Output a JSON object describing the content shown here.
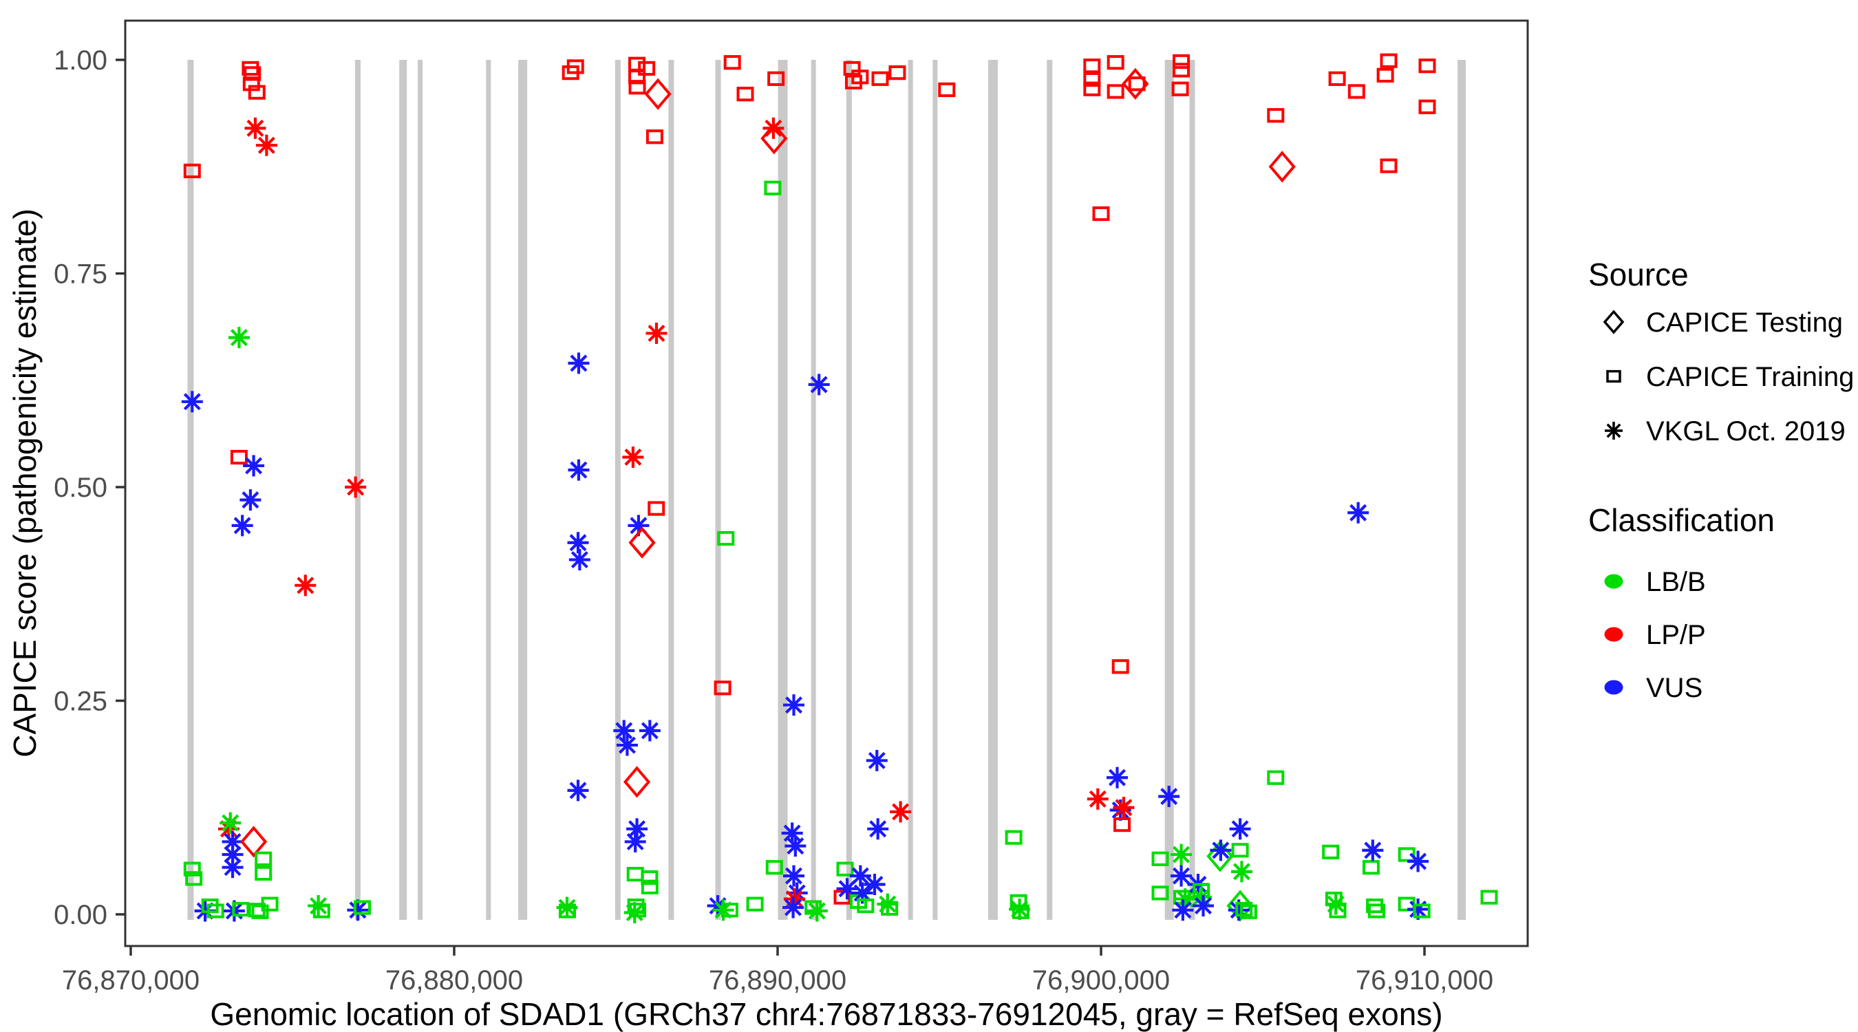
{
  "chart_data": {
    "type": "scatter",
    "title": "",
    "xlabel": "Genomic location of SDAD1 (GRCh37 chr4:76871833-76912045, gray = RefSeq exons)",
    "ylabel": "CAPICE score (pathogenicity estimate)",
    "grid": "off",
    "legend_position": "right",
    "background": "#ffffff",
    "panel_border_color": "#333333",
    "exon_color": "#C9C9C9",
    "class_colors": {
      "B": "#00DC00",
      "P": "#FF0000",
      "U": "#1A1AFF"
    },
    "source_shapes": {
      "T": "diamond",
      "R": "square",
      "V": "asterisk"
    },
    "point_codes": {
      "source": {
        "T": "CAPICE Testing",
        "R": "CAPICE Training",
        "V": "VKGL Oct. 2019"
      },
      "classification": {
        "B": "LB/B",
        "P": "LP/P",
        "U": "VUS"
      }
    },
    "xlim_bp": [
      76869830,
      76913190
    ],
    "ylim": [
      -0.047,
      1.047
    ],
    "x_ticks": [
      {
        "bp": 76870000,
        "label": "76,870,000"
      },
      {
        "bp": 76880000,
        "label": "76,880,000"
      },
      {
        "bp": 76890000,
        "label": "76,890,000"
      },
      {
        "bp": 76900000,
        "label": "76,900,000"
      },
      {
        "bp": 76910000,
        "label": "76,910,000"
      }
    ],
    "y_ticks": [
      {
        "v": 0.0,
        "label": "0.00"
      },
      {
        "v": 0.25,
        "label": "0.25"
      },
      {
        "v": 0.5,
        "label": "0.50"
      },
      {
        "v": 0.75,
        "label": "0.75"
      },
      {
        "v": 1.0,
        "label": "1.00"
      }
    ],
    "exons_bp": [
      [
        76871850,
        9
      ],
      [
        76877020,
        8
      ],
      [
        76878420,
        11
      ],
      [
        76878950,
        7
      ],
      [
        76881060,
        7
      ],
      [
        76882120,
        13
      ],
      [
        76885060,
        8
      ],
      [
        76886710,
        8
      ],
      [
        76888160,
        8
      ],
      [
        76890160,
        14
      ],
      [
        76891110,
        7
      ],
      [
        76892210,
        8
      ],
      [
        76894110,
        7
      ],
      [
        76894870,
        7
      ],
      [
        76896660,
        14
      ],
      [
        76898410,
        8
      ],
      [
        76902110,
        13
      ],
      [
        76902820,
        8
      ],
      [
        76911150,
        12
      ]
    ],
    "points": [
      [
        76871900,
        0.87,
        "R",
        "P"
      ],
      [
        76871900,
        0.6,
        "V",
        "U"
      ],
      [
        76871900,
        0.053,
        "R",
        "B"
      ],
      [
        76871950,
        0.042,
        "R",
        "B"
      ],
      [
        76872300,
        0.004,
        "V",
        "U"
      ],
      [
        76872450,
        0.01,
        "R",
        "B"
      ],
      [
        76872620,
        0.004,
        "R",
        "B"
      ],
      [
        76873030,
        0.1,
        "V",
        "P"
      ],
      [
        76873080,
        0.107,
        "V",
        "B"
      ],
      [
        76873150,
        0.085,
        "V",
        "U"
      ],
      [
        76873150,
        0.07,
        "V",
        "U"
      ],
      [
        76873150,
        0.055,
        "V",
        "U"
      ],
      [
        76873200,
        0.004,
        "V",
        "U"
      ],
      [
        76873350,
        0.675,
        "V",
        "B"
      ],
      [
        76873350,
        0.535,
        "R",
        "P"
      ],
      [
        76873400,
        0.006,
        "R",
        "B"
      ],
      [
        76873450,
        0.455,
        "V",
        "U"
      ],
      [
        76873700,
        0.485,
        "V",
        "U"
      ],
      [
        76873700,
        0.99,
        "R",
        "P"
      ],
      [
        76873760,
        0.984,
        "R",
        "P"
      ],
      [
        76873730,
        0.972,
        "R",
        "P"
      ],
      [
        76873900,
        0.962,
        "R",
        "P"
      ],
      [
        76873850,
        0.92,
        "V",
        "P"
      ],
      [
        76873800,
        0.525,
        "V",
        "U"
      ],
      [
        76873800,
        0.085,
        "T",
        "P"
      ],
      [
        76873900,
        0.005,
        "R",
        "B"
      ],
      [
        76874000,
        0.003,
        "R",
        "B"
      ],
      [
        76874100,
        0.065,
        "R",
        "B"
      ],
      [
        76874100,
        0.048,
        "R",
        "B"
      ],
      [
        76874300,
        0.012,
        "R",
        "B"
      ],
      [
        76874200,
        0.9,
        "V",
        "P"
      ],
      [
        76875400,
        0.385,
        "V",
        "P"
      ],
      [
        76875800,
        0.01,
        "V",
        "B"
      ],
      [
        76875900,
        0.004,
        "R",
        "B"
      ],
      [
        76876950,
        0.5,
        "V",
        "P"
      ],
      [
        76877020,
        0.005,
        "V",
        "U"
      ],
      [
        76877160,
        0.008,
        "R",
        "B"
      ],
      [
        76883490,
        0.008,
        "V",
        "B"
      ],
      [
        76883500,
        0.004,
        "R",
        "B"
      ],
      [
        76883600,
        0.985,
        "R",
        "P"
      ],
      [
        76883750,
        0.992,
        "R",
        "P"
      ],
      [
        76883850,
        0.645,
        "V",
        "U"
      ],
      [
        76883850,
        0.52,
        "V",
        "U"
      ],
      [
        76883830,
        0.435,
        "V",
        "U"
      ],
      [
        76883880,
        0.415,
        "V",
        "U"
      ],
      [
        76883830,
        0.145,
        "V",
        "U"
      ],
      [
        76885250,
        0.215,
        "V",
        "U"
      ],
      [
        76885350,
        0.198,
        "V",
        "U"
      ],
      [
        76885530,
        0.535,
        "V",
        "P"
      ],
      [
        76885600,
        0.085,
        "V",
        "U"
      ],
      [
        76885600,
        0.047,
        "R",
        "B"
      ],
      [
        76885620,
        0.01,
        "R",
        "B"
      ],
      [
        76885650,
        0.995,
        "R",
        "P"
      ],
      [
        76885650,
        0.98,
        "R",
        "P"
      ],
      [
        76885660,
        0.968,
        "R",
        "P"
      ],
      [
        76885650,
        0.155,
        "T",
        "P"
      ],
      [
        76885650,
        0.1,
        "V",
        "U"
      ],
      [
        76885670,
        0.005,
        "R",
        "B"
      ],
      [
        76885580,
        0.002,
        "V",
        "B"
      ],
      [
        76885700,
        0.455,
        "V",
        "U"
      ],
      [
        76885810,
        0.435,
        "T",
        "P"
      ],
      [
        76885950,
        0.99,
        "R",
        "P"
      ],
      [
        76886040,
        0.043,
        "R",
        "B"
      ],
      [
        76886050,
        0.032,
        "R",
        "B"
      ],
      [
        76886050,
        0.215,
        "V",
        "U"
      ],
      [
        76886200,
        0.91,
        "R",
        "P"
      ],
      [
        76886250,
        0.475,
        "R",
        "P"
      ],
      [
        76886255,
        0.68,
        "V",
        "P"
      ],
      [
        76886300,
        0.96,
        "T",
        "P"
      ],
      [
        76888150,
        0.01,
        "V",
        "U"
      ],
      [
        76888300,
        0.265,
        "R",
        "P"
      ],
      [
        76888320,
        0.005,
        "V",
        "B"
      ],
      [
        76888400,
        0.44,
        "R",
        "B"
      ],
      [
        76888520,
        0.005,
        "R",
        "B"
      ],
      [
        76888600,
        0.997,
        "R",
        "P"
      ],
      [
        76889000,
        0.96,
        "R",
        "P"
      ],
      [
        76889300,
        0.012,
        "R",
        "B"
      ],
      [
        76889850,
        0.85,
        "R",
        "B"
      ],
      [
        76889870,
        0.92,
        "V",
        "P"
      ],
      [
        76889890,
        0.908,
        "T",
        "P"
      ],
      [
        76889900,
        0.055,
        "R",
        "B"
      ],
      [
        76889950,
        0.978,
        "R",
        "P"
      ],
      [
        76890450,
        0.095,
        "V",
        "U"
      ],
      [
        76890500,
        0.245,
        "V",
        "U"
      ],
      [
        76890550,
        0.08,
        "V",
        "U"
      ],
      [
        76890500,
        0.045,
        "V",
        "U"
      ],
      [
        76890600,
        0.025,
        "V",
        "U"
      ],
      [
        76890520,
        0.018,
        "V",
        "P"
      ],
      [
        76890480,
        0.008,
        "V",
        "U"
      ],
      [
        76891100,
        0.008,
        "R",
        "B"
      ],
      [
        76891220,
        0.004,
        "V",
        "B"
      ],
      [
        76891280,
        0.62,
        "V",
        "U"
      ],
      [
        76892000,
        0.02,
        "R",
        "P"
      ],
      [
        76892085,
        0.053,
        "R",
        "B"
      ],
      [
        76892150,
        0.03,
        "V",
        "U"
      ],
      [
        76892300,
        0.99,
        "R",
        "P"
      ],
      [
        76892350,
        0.974,
        "R",
        "P"
      ],
      [
        76892500,
        0.015,
        "R",
        "B"
      ],
      [
        76892550,
        0.98,
        "R",
        "P"
      ],
      [
        76892560,
        0.045,
        "V",
        "U"
      ],
      [
        76892620,
        0.025,
        "V",
        "U"
      ],
      [
        76892720,
        0.01,
        "R",
        "B"
      ],
      [
        76893000,
        0.035,
        "V",
        "U"
      ],
      [
        76893070,
        0.18,
        "V",
        "U"
      ],
      [
        76893100,
        0.1,
        "V",
        "U"
      ],
      [
        76893170,
        0.978,
        "R",
        "P"
      ],
      [
        76893400,
        0.012,
        "V",
        "B"
      ],
      [
        76893460,
        0.007,
        "R",
        "B"
      ],
      [
        76893700,
        0.985,
        "R",
        "P"
      ],
      [
        76893800,
        0.12,
        "V",
        "P"
      ],
      [
        76895230,
        0.965,
        "R",
        "P"
      ],
      [
        76897300,
        0.09,
        "R",
        "B"
      ],
      [
        76897450,
        0.015,
        "R",
        "B"
      ],
      [
        76897480,
        0.006,
        "V",
        "B"
      ],
      [
        76897520,
        0.003,
        "R",
        "B"
      ],
      [
        76899720,
        0.993,
        "R",
        "P"
      ],
      [
        76899720,
        0.977,
        "R",
        "P"
      ],
      [
        76899720,
        0.966,
        "R",
        "P"
      ],
      [
        76899900,
        0.135,
        "V",
        "P"
      ],
      [
        76900000,
        0.82,
        "R",
        "P"
      ],
      [
        76900450,
        0.997,
        "R",
        "P"
      ],
      [
        76900450,
        0.963,
        "R",
        "P"
      ],
      [
        76900500,
        0.16,
        "V",
        "U"
      ],
      [
        76900600,
        0.29,
        "R",
        "P"
      ],
      [
        76900600,
        0.122,
        "V",
        "U"
      ],
      [
        76900650,
        0.105,
        "R",
        "P"
      ],
      [
        76900700,
        0.125,
        "V",
        "P"
      ],
      [
        76901060,
        0.972,
        "T",
        "P"
      ],
      [
        76901110,
        0.972,
        "R",
        "P"
      ],
      [
        76901830,
        0.065,
        "R",
        "B"
      ],
      [
        76901830,
        0.025,
        "R",
        "B"
      ],
      [
        76902100,
        0.138,
        "V",
        "U"
      ],
      [
        76902450,
        0.966,
        "R",
        "P"
      ],
      [
        76902480,
        0.998,
        "R",
        "P"
      ],
      [
        76902480,
        0.988,
        "R",
        "P"
      ],
      [
        76902480,
        0.07,
        "V",
        "B"
      ],
      [
        76902480,
        0.045,
        "V",
        "U"
      ],
      [
        76902500,
        0.02,
        "R",
        "B"
      ],
      [
        76902600,
        0.018,
        "V",
        "B"
      ],
      [
        76902530,
        0.005,
        "V",
        "U"
      ],
      [
        76903000,
        0.035,
        "V",
        "U"
      ],
      [
        76903100,
        0.02,
        "V",
        "B"
      ],
      [
        76903100,
        0.028,
        "R",
        "B"
      ],
      [
        76903160,
        0.01,
        "V",
        "U"
      ],
      [
        76903680,
        0.068,
        "T",
        "B"
      ],
      [
        76903700,
        0.075,
        "V",
        "U"
      ],
      [
        76904300,
        0.1,
        "V",
        "U"
      ],
      [
        76904300,
        0.075,
        "R",
        "B"
      ],
      [
        76904350,
        0.05,
        "V",
        "B"
      ],
      [
        76904300,
        0.01,
        "T",
        "B"
      ],
      [
        76904260,
        0.005,
        "V",
        "U"
      ],
      [
        76904420,
        0.006,
        "R",
        "B"
      ],
      [
        76904560,
        0.003,
        "R",
        "B"
      ],
      [
        76905400,
        0.935,
        "R",
        "P"
      ],
      [
        76905600,
        0.875,
        "T",
        "P"
      ],
      [
        76905400,
        0.16,
        "R",
        "B"
      ],
      [
        76907100,
        0.073,
        "R",
        "B"
      ],
      [
        76907200,
        0.018,
        "R",
        "B"
      ],
      [
        76907260,
        0.012,
        "V",
        "B"
      ],
      [
        76907320,
        0.004,
        "R",
        "B"
      ],
      [
        76907300,
        0.978,
        "R",
        "P"
      ],
      [
        76907900,
        0.963,
        "R",
        "P"
      ],
      [
        76907950,
        0.47,
        "V",
        "U"
      ],
      [
        76908350,
        0.055,
        "R",
        "B"
      ],
      [
        76908400,
        0.075,
        "V",
        "U"
      ],
      [
        76908460,
        0.01,
        "R",
        "B"
      ],
      [
        76908520,
        0.004,
        "R",
        "B"
      ],
      [
        76908790,
        0.982,
        "R",
        "P"
      ],
      [
        76908894,
        0.999,
        "R",
        "P"
      ],
      [
        76908894,
        0.876,
        "R",
        "P"
      ],
      [
        76909450,
        0.07,
        "R",
        "B"
      ],
      [
        76909450,
        0.012,
        "R",
        "B"
      ],
      [
        76909800,
        0.062,
        "V",
        "U"
      ],
      [
        76909800,
        0.006,
        "V",
        "U"
      ],
      [
        76909920,
        0.004,
        "R",
        "B"
      ],
      [
        76910085,
        0.993,
        "R",
        "P"
      ],
      [
        76910085,
        0.945,
        "R",
        "P"
      ],
      [
        76912000,
        0.02,
        "R",
        "B"
      ]
    ]
  },
  "legend": {
    "source": {
      "title": "Source",
      "items": [
        {
          "shape": "diamond",
          "label": "CAPICE Testing"
        },
        {
          "shape": "square",
          "label": "CAPICE Training"
        },
        {
          "shape": "asterisk",
          "label": "VKGL Oct. 2019"
        }
      ]
    },
    "classification": {
      "title": "Classification",
      "items": [
        {
          "color": "#00DC00",
          "label": "LB/B"
        },
        {
          "color": "#FF0000",
          "label": "LP/P"
        },
        {
          "color": "#1A1AFF",
          "label": "VUS"
        }
      ]
    }
  }
}
